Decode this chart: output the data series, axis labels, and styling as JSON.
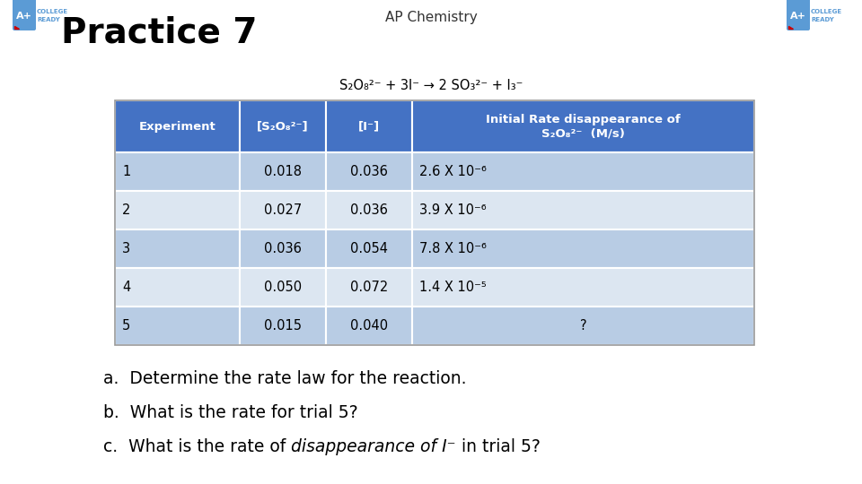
{
  "title_top": "AP Chemistry",
  "title_main": "Practice 7",
  "reaction": "S₂O₈²⁻ + 3I⁻ → 2 SO₃²⁻ + I₃⁻",
  "header_color": "#4472C4",
  "row_color_odd": "#B8CCE4",
  "row_color_even": "#DCE6F1",
  "header_text_color": "#FFFFFF",
  "body_text_color": "#000000",
  "background_color": "#FFFFFF",
  "col_headers": [
    "Experiment",
    "[S₂O₈²⁻]",
    "[I⁻]",
    "Initial Rate disappearance of\nS₂O₈²⁻  (M/s)"
  ],
  "rows": [
    [
      "1",
      "0.018",
      "0.036",
      "2.6 X 10⁻⁶"
    ],
    [
      "2",
      "0.027",
      "0.036",
      "3.9 X 10⁻⁶"
    ],
    [
      "3",
      "0.036",
      "0.054",
      "7.8 X 10⁻⁶"
    ],
    [
      "4",
      "0.050",
      "0.072",
      "1.4 X 10⁻⁵"
    ],
    [
      "5",
      "0.015",
      "0.040",
      "?"
    ]
  ],
  "q_before_italic": [
    "a.  Determine the rate law for the reaction.",
    "b.  What is the rate for trial 5?",
    "c.  What is the rate of "
  ],
  "q_italic": [
    "",
    "",
    "disappearance of I⁻"
  ],
  "q_after_italic": [
    "",
    "",
    " in trial 5?"
  ],
  "logo_blue": "#5B9BD5",
  "logo_red": "#CC0000",
  "logo_text_blue": "#5B9BD5"
}
